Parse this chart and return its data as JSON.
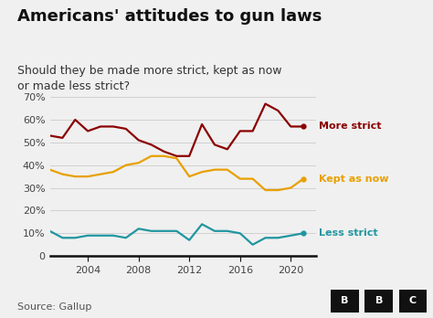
{
  "title": "Americans' attitudes to gun laws",
  "subtitle": "Should they be made more strict, kept as now\nor made less strict?",
  "source": "Source: Gallup",
  "bg_color": "#f0f0f0",
  "plot_bg_color": "#f0f0f0",
  "more_strict": {
    "years": [
      2001,
      2002,
      2003,
      2004,
      2005,
      2006,
      2007,
      2008,
      2009,
      2010,
      2011,
      2012,
      2013,
      2014,
      2015,
      2016,
      2017,
      2018,
      2019,
      2020,
      2021
    ],
    "values": [
      53,
      52,
      60,
      55,
      57,
      57,
      56,
      51,
      49,
      46,
      44,
      44,
      58,
      49,
      47,
      55,
      55,
      67,
      64,
      57,
      57
    ],
    "color": "#8b0000",
    "label": "More strict"
  },
  "kept_as_now": {
    "years": [
      2001,
      2002,
      2003,
      2004,
      2005,
      2006,
      2007,
      2008,
      2009,
      2010,
      2011,
      2012,
      2013,
      2014,
      2015,
      2016,
      2017,
      2018,
      2019,
      2020,
      2021
    ],
    "values": [
      38,
      36,
      35,
      35,
      36,
      37,
      40,
      41,
      44,
      44,
      43,
      35,
      37,
      38,
      38,
      34,
      34,
      29,
      29,
      30,
      34
    ],
    "color": "#e8a000",
    "label": "Kept as now"
  },
  "less_strict": {
    "years": [
      2001,
      2002,
      2003,
      2004,
      2005,
      2006,
      2007,
      2008,
      2009,
      2010,
      2011,
      2012,
      2013,
      2014,
      2015,
      2016,
      2017,
      2018,
      2019,
      2020,
      2021
    ],
    "values": [
      11,
      8,
      8,
      9,
      9,
      9,
      8,
      12,
      11,
      11,
      11,
      7,
      14,
      11,
      11,
      10,
      5,
      8,
      8,
      9,
      10
    ],
    "color": "#2196a0",
    "label": "Less strict"
  },
  "ylim": [
    0,
    70
  ],
  "yticks": [
    0,
    10,
    20,
    30,
    40,
    50,
    60,
    70
  ],
  "xlim": [
    2001,
    2022
  ],
  "xticks": [
    2004,
    2008,
    2012,
    2016,
    2020
  ],
  "title_fontsize": 13,
  "subtitle_fontsize": 9,
  "tick_fontsize": 8,
  "label_fontsize": 8,
  "source_fontsize": 8,
  "linewidth": 1.6
}
